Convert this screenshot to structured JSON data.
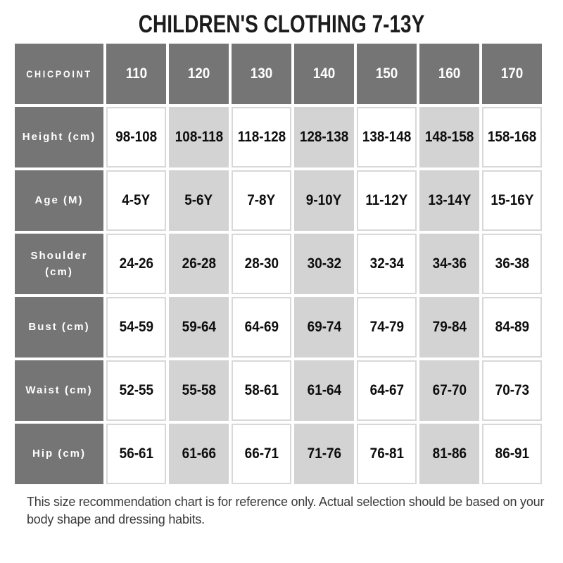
{
  "title": "CHILDREN'S CLOTHING 7-13Y",
  "chart_data": {
    "type": "table",
    "title": "CHILDREN'S CLOTHING 7-13Y",
    "columns": [
      "CHICPOINT",
      "110",
      "120",
      "130",
      "140",
      "150",
      "160",
      "170"
    ],
    "rows": [
      {
        "label": "Height (cm)",
        "values": [
          "98-108",
          "108-118",
          "118-128",
          "128-138",
          "138-148",
          "148-158",
          "158-168"
        ]
      },
      {
        "label": "Age (M)",
        "values": [
          "4-5Y",
          "5-6Y",
          "7-8Y",
          "9-10Y",
          "11-12Y",
          "13-14Y",
          "15-16Y"
        ]
      },
      {
        "label": "Shoulder (cm)",
        "values": [
          "24-26",
          "26-28",
          "28-30",
          "30-32",
          "32-34",
          "34-36",
          "36-38"
        ]
      },
      {
        "label": "Bust (cm)",
        "values": [
          "54-59",
          "59-64",
          "64-69",
          "69-74",
          "74-79",
          "79-84",
          "84-89"
        ]
      },
      {
        "label": "Waist (cm)",
        "values": [
          "52-55",
          "55-58",
          "58-61",
          "61-64",
          "64-67",
          "67-70",
          "70-73"
        ]
      },
      {
        "label": "Hip (cm)",
        "values": [
          "56-61",
          "61-66",
          "66-71",
          "71-76",
          "76-81",
          "81-86",
          "86-91"
        ]
      }
    ],
    "striped_columns": [
      "120",
      "140",
      "160"
    ],
    "layout": {
      "grid": false,
      "legend": "none",
      "header_style": "dark-gray",
      "stripe_style": "alternating-columns"
    }
  },
  "colors": {
    "header_bg": "#757575",
    "header_text": "#ffffff",
    "stripe_bg": "#d3d3d3",
    "cell_border": "#d8d8d8",
    "value_text": "#0d0d0d"
  },
  "footer_note": "This size recommendation chart is for reference only. Actual selection should be based on your body shape and dressing habits."
}
